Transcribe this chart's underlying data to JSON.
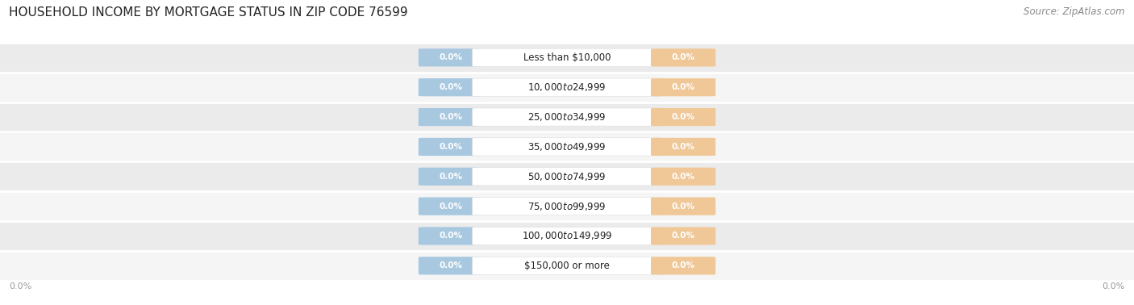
{
  "title": "HOUSEHOLD INCOME BY MORTGAGE STATUS IN ZIP CODE 76599",
  "source": "Source: ZipAtlas.com",
  "categories": [
    "Less than $10,000",
    "$10,000 to $24,999",
    "$25,000 to $34,999",
    "$35,000 to $49,999",
    "$50,000 to $74,999",
    "$75,000 to $99,999",
    "$100,000 to $149,999",
    "$150,000 or more"
  ],
  "without_mortgage": [
    0.0,
    0.0,
    0.0,
    0.0,
    0.0,
    0.0,
    0.0,
    0.0
  ],
  "with_mortgage": [
    0.0,
    0.0,
    0.0,
    0.0,
    0.0,
    0.0,
    0.0,
    0.0
  ],
  "without_mortgage_color": "#a8c8e0",
  "with_mortgage_color": "#f0c898",
  "row_bg_colors": [
    "#f5f5f5",
    "#ebebeb"
  ],
  "label_text_color": "#ffffff",
  "category_label_color": "#222222",
  "title_color": "#222222",
  "source_color": "#888888",
  "axis_label_color": "#999999",
  "title_fontsize": 11,
  "source_fontsize": 8.5,
  "bar_label_fontsize": 7.5,
  "category_fontsize": 8.5,
  "legend_fontsize": 8.5,
  "axis_tick_fontsize": 8
}
